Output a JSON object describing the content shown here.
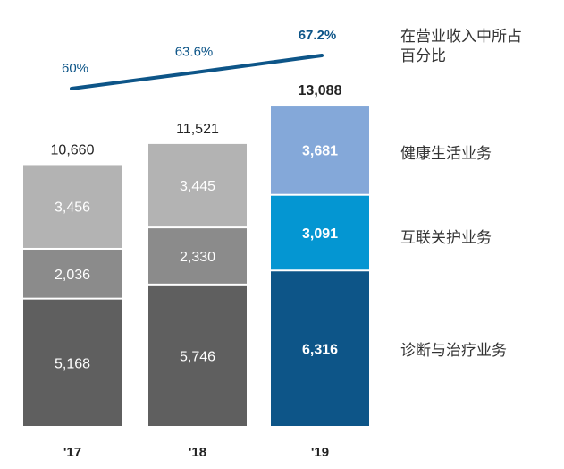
{
  "chart_data": {
    "type": "bar",
    "stacked": true,
    "categories": [
      "'17",
      "'18",
      "'19"
    ],
    "series": [
      {
        "name": "诊断与治疗业务",
        "values": [
          5168,
          5746,
          6316
        ],
        "colors": [
          "#5f5f5f",
          "#5f5f5f",
          "#0d5588"
        ]
      },
      {
        "name": "互联关护业务",
        "values": [
          2036,
          2330,
          3091
        ],
        "colors": [
          "#8b8b8b",
          "#8b8b8b",
          "#0496d2"
        ]
      },
      {
        "name": "健康生活业务",
        "values": [
          3456,
          3445,
          3681
        ],
        "colors": [
          "#b3b3b3",
          "#b3b3b3",
          "#84a8d9"
        ]
      }
    ],
    "value_labels": [
      [
        "5,168",
        "5,746",
        "6,316"
      ],
      [
        "2,036",
        "2,330",
        "3,091"
      ],
      [
        "3,456",
        "3,445",
        "3,681"
      ]
    ],
    "totals": [
      10660,
      11521,
      13088
    ],
    "total_labels": [
      "10,660",
      "11,521",
      "13,088"
    ],
    "line": {
      "name_lines": [
        "在营业收入中所占",
        "百分比"
      ],
      "values": [
        60,
        63.6,
        67.2
      ],
      "labels": [
        "60%",
        "63.6%",
        "67.2%"
      ],
      "color": "#0d5588"
    },
    "highlight_label_color": "#ffffff",
    "label_color": "#ffffff",
    "axis_label_color": "#222222"
  }
}
